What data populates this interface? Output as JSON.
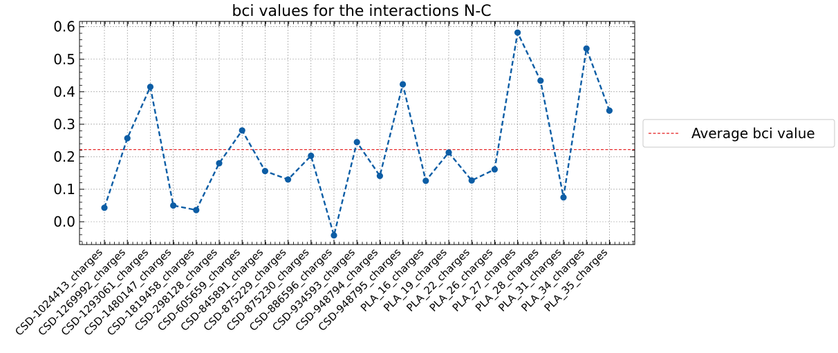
{
  "chart_data": {
    "type": "line",
    "title": "bci values for the interactions N-C",
    "xlabel": "",
    "ylabel": "",
    "categories": [
      "CSD-1024413_charges",
      "CSD-1269992_charges",
      "CSD-1293061_charges",
      "CSD-1480147_charges",
      "CSD-1819458_charges",
      "CSD-298128_charges",
      "CSD-605659_charges",
      "CSD-845891_charges",
      "CSD-875229_charges",
      "CSD-875230_charges",
      "CSD-886596_charges",
      "CSD-934593_charges",
      "CSD-948794_charges",
      "CSD-948795_charges",
      "PLA_16_charges",
      "PLA_19_charges",
      "PLA_22_charges",
      "PLA_26_charges",
      "PLA_27_charges",
      "PLA_28_charges",
      "PLA_31_charges",
      "PLA_34_charges",
      "PLA_35_charges"
    ],
    "series": [
      {
        "values": [
          0.043,
          0.257,
          0.415,
          0.05,
          0.036,
          0.18,
          0.281,
          0.156,
          0.13,
          0.203,
          -0.042,
          0.245,
          0.141,
          0.423,
          0.126,
          0.213,
          0.127,
          0.161,
          0.582,
          0.434,
          0.075,
          0.533,
          0.342
        ],
        "color": "#0c5da5",
        "line_style": "dashed",
        "marker": "circle"
      }
    ],
    "reference_line": {
      "label": "Average bci value",
      "value": 0.222,
      "color": "#e41a1c",
      "line_style": "dashed"
    },
    "yticks": [
      "0.0",
      "0.1",
      "0.2",
      "0.3",
      "0.4",
      "0.5",
      "0.6"
    ],
    "ylim": [
      -0.07,
      0.615
    ],
    "grid": true,
    "legend_position": "right, outside plot"
  }
}
